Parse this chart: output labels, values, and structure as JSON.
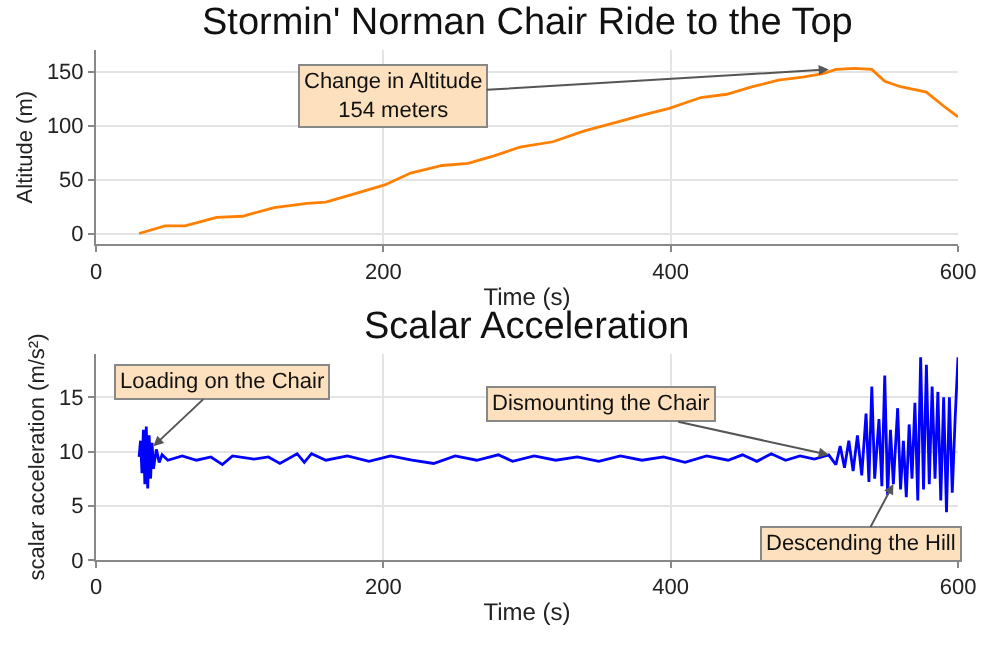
{
  "chart_data": [
    {
      "type": "line",
      "title": "Stormin' Norman Chair Ride to the Top",
      "xlabel": "Time (s)",
      "ylabel": "Altitude (m)",
      "xlim": [
        0,
        600
      ],
      "ylim": [
        -10,
        170
      ],
      "xticks": [
        0,
        200,
        400,
        600
      ],
      "yticks": [
        0,
        50,
        100,
        150
      ],
      "grid": true,
      "x": [
        30,
        48,
        62,
        84,
        102,
        124,
        147,
        160,
        178,
        201,
        219,
        241,
        259,
        277,
        295,
        318,
        340,
        362,
        381,
        399,
        421,
        439,
        457,
        475,
        493,
        506,
        515,
        528,
        540,
        549,
        560,
        578,
        591,
        600
      ],
      "series": [
        {
          "color": "#ff8000",
          "values": [
            0,
            7,
            7,
            15,
            16,
            24,
            28,
            29,
            36,
            45,
            56,
            63,
            65,
            72,
            80,
            85,
            95,
            103,
            110,
            116,
            126,
            129,
            136,
            142,
            145,
            148,
            152,
            153,
            152,
            141,
            136,
            131,
            117,
            108
          ]
        }
      ],
      "annotations": [
        {
          "text": "Change in Altitude\n154 meters",
          "x": 510,
          "y": 152
        }
      ]
    },
    {
      "type": "line",
      "title": "Scalar Acceleration",
      "xlabel": "Time (s)",
      "ylabel": "scalar acceleration (m/s²)",
      "xlim": [
        0,
        600
      ],
      "ylim": [
        0,
        19
      ],
      "xticks": [
        0,
        200,
        400,
        600
      ],
      "yticks": [
        0,
        5,
        10,
        15
      ],
      "grid": true,
      "x": [
        30,
        31,
        32,
        33,
        34,
        35,
        36,
        37,
        38,
        39,
        40,
        42,
        44,
        46,
        50,
        60,
        70,
        80,
        88,
        95,
        110,
        120,
        128,
        140,
        145,
        150,
        160,
        175,
        190,
        205,
        220,
        235,
        250,
        265,
        280,
        290,
        305,
        320,
        335,
        350,
        365,
        380,
        395,
        410,
        425,
        440,
        450,
        460,
        470,
        480,
        490,
        500,
        510,
        515,
        518,
        521,
        524,
        527,
        530,
        533,
        536,
        538,
        540,
        542,
        545,
        547,
        549,
        551,
        553,
        555,
        558,
        560,
        562,
        564,
        566,
        568,
        570,
        572,
        574,
        576,
        578,
        580,
        582,
        584,
        586,
        588,
        590,
        592,
        594,
        596,
        598,
        600
      ],
      "series": [
        {
          "color": "#0000ff",
          "values": [
            9.5,
            11,
            8,
            12,
            7,
            12.3,
            6.6,
            11.5,
            7.5,
            10.8,
            8.4,
            10.2,
            9.0,
            9.7,
            9.2,
            9.6,
            9.2,
            9.5,
            8.8,
            9.6,
            9.3,
            9.5,
            8.9,
            9.8,
            9.0,
            9.8,
            9.2,
            9.6,
            9.1,
            9.6,
            9.2,
            8.9,
            9.6,
            9.2,
            9.7,
            9.1,
            9.6,
            9.2,
            9.5,
            9.1,
            9.6,
            9.2,
            9.5,
            9.0,
            9.6,
            9.2,
            9.7,
            9.1,
            9.8,
            9.2,
            9.6,
            9.3,
            9.7,
            8.8,
            10.5,
            8.5,
            11,
            8.2,
            11.5,
            7.8,
            13.5,
            7.2,
            16,
            7.5,
            13,
            6.8,
            17,
            6.0,
            12,
            7.0,
            14,
            6.5,
            11,
            5.8,
            12.5,
            7.5,
            14.5,
            5.5,
            18.7,
            6.5,
            18,
            7.0,
            16,
            7.5,
            15.5,
            5.5,
            15,
            4.4,
            15,
            6.2,
            13,
            18.7
          ]
        }
      ],
      "annotations": [
        {
          "text": "Loading on the Chair",
          "x": 40,
          "y": 10.5
        },
        {
          "text": "Dismounting the Chair",
          "x": 510,
          "y": 9.7
        },
        {
          "text": "Descending the Hill",
          "x": 555,
          "y": 7
        }
      ]
    }
  ]
}
